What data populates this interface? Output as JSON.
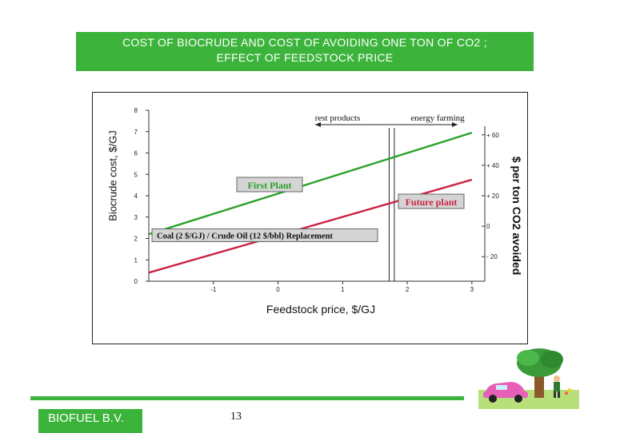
{
  "banner": {
    "line1": "COST OF BIOCRUDE AND COST OF AVOIDING ONE TON OF CO2 ;",
    "line2": "EFFECT OF FEEDSTOCK PRICE"
  },
  "chart_data": {
    "type": "line",
    "xlabel": "Feedstock price, $/GJ",
    "ylabel": "Biocrude cost, $/GJ",
    "y2label": "$ per ton CO2 avoided",
    "xlim": [
      -2,
      3.2
    ],
    "ylim": [
      0,
      8
    ],
    "x_ticks": [
      -1,
      0,
      1,
      2,
      3
    ],
    "x_tick_labels": [
      "-1",
      "0",
      "1",
      "2",
      "3"
    ],
    "y_ticks": [
      0,
      1,
      2,
      3,
      4,
      5,
      6,
      7,
      8
    ],
    "y_tick_labels": [
      "0",
      "1",
      "2",
      "3",
      "4",
      "5",
      "6",
      "7",
      "8"
    ],
    "y2_ticks": [
      -20,
      0,
      20,
      40,
      60
    ],
    "y2_tick_labels": [
      "- 20",
      "0",
      "+ 20",
      "+ 40",
      "+ 60"
    ],
    "y2_mapping": {
      "y_at_minus20": 1.15,
      "y_at_plus60": 6.85
    },
    "series": [
      {
        "name": "First Plant",
        "color": "#2aa12a",
        "x": [
          -2,
          3
        ],
        "y": [
          2.2,
          6.95
        ]
      },
      {
        "name": "Future plant",
        "color": "#cc2244",
        "x": [
          -2,
          3
        ],
        "y": [
          0.4,
          4.75
        ]
      }
    ],
    "regions": [
      {
        "label": "rest products",
        "x_from": 1.8,
        "direction": "left"
      },
      {
        "label": "energy farming",
        "x_from": 1.8,
        "direction": "right"
      }
    ],
    "divider_x": [
      1.72,
      1.8
    ],
    "reference_label": "Coal (2 $/GJ) / Crude Oil (12 $/bbl) Replacement",
    "reference_y": 2.15,
    "grid": false,
    "legend": "inline labels"
  },
  "footer": {
    "company": "BIOFUEL B.V.",
    "page": "13"
  },
  "colors": {
    "banner_green": "#3cb43c",
    "first_plant": "#2aa12a",
    "future_plant": "#cc2244",
    "label_box": "#d4d4d4"
  }
}
